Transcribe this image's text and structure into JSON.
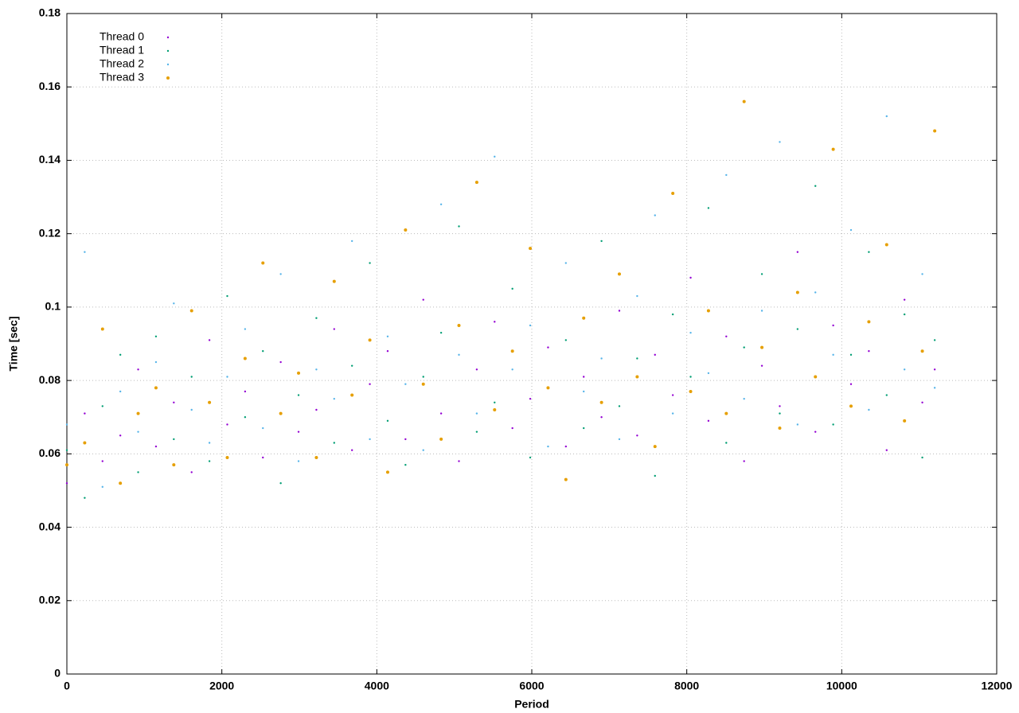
{
  "chart_data": {
    "type": "scatter",
    "x_label": "Period",
    "y_label": "Time [sec]",
    "xlim": [
      0,
      12000
    ],
    "xticks": [
      0,
      2000,
      4000,
      6000,
      8000,
      10000,
      12000
    ],
    "ylim": [
      0,
      0.18
    ],
    "yticks": [
      0,
      0.02,
      0.04,
      0.06,
      0.08,
      0.1,
      0.12,
      0.14,
      0.16,
      0.18
    ],
    "grid": true,
    "legend": "top-left",
    "x": [
      0,
      230,
      460,
      690,
      920,
      1150,
      1380,
      1610,
      1840,
      2070,
      2300,
      2530,
      2760,
      2990,
      3220,
      3450,
      3680,
      3910,
      4140,
      4370,
      4600,
      4830,
      5060,
      5290,
      5520,
      5750,
      5980,
      6210,
      6440,
      6670,
      6900,
      7130,
      7360,
      7590,
      7820,
      8050,
      8280,
      8510,
      8740,
      8970,
      9200,
      9430,
      9660,
      9890,
      10120,
      10350,
      10580,
      10810,
      11040,
      11200
    ],
    "series": [
      {
        "name": "Thread 0",
        "color": "#9400d3",
        "values": [
          0.052,
          0.071,
          0.058,
          0.065,
          0.083,
          0.062,
          0.074,
          0.055,
          0.091,
          0.068,
          0.077,
          0.059,
          0.085,
          0.066,
          0.072,
          0.094,
          0.061,
          0.079,
          0.088,
          0.064,
          0.102,
          0.071,
          0.058,
          0.083,
          0.096,
          0.067,
          0.075,
          0.089,
          0.062,
          0.081,
          0.07,
          0.099,
          0.065,
          0.087,
          0.076,
          0.108,
          0.069,
          0.092,
          0.058,
          0.084,
          0.073,
          0.115,
          0.066,
          0.095,
          0.079,
          0.088,
          0.061,
          0.102,
          0.074,
          0.083
        ]
      },
      {
        "name": "Thread 1",
        "color": "#009e73",
        "values": [
          0.061,
          0.048,
          0.073,
          0.087,
          0.055,
          0.092,
          0.064,
          0.081,
          0.058,
          0.103,
          0.07,
          0.088,
          0.052,
          0.076,
          0.097,
          0.063,
          0.084,
          0.112,
          0.069,
          0.057,
          0.081,
          0.093,
          0.122,
          0.066,
          0.074,
          0.105,
          0.059,
          0.078,
          0.091,
          0.067,
          0.118,
          0.073,
          0.086,
          0.054,
          0.098,
          0.081,
          0.127,
          0.063,
          0.089,
          0.109,
          0.071,
          0.094,
          0.133,
          0.068,
          0.087,
          0.115,
          0.076,
          0.098,
          0.059,
          0.091
        ]
      },
      {
        "name": "Thread 2",
        "color": "#56b4e9",
        "values": [
          0.068,
          0.115,
          0.051,
          0.077,
          0.066,
          0.085,
          0.101,
          0.072,
          0.063,
          0.081,
          0.094,
          0.067,
          0.109,
          0.058,
          0.083,
          0.075,
          0.118,
          0.064,
          0.092,
          0.079,
          0.061,
          0.128,
          0.087,
          0.071,
          0.141,
          0.083,
          0.095,
          0.062,
          0.112,
          0.077,
          0.086,
          0.064,
          0.103,
          0.125,
          0.071,
          0.093,
          0.082,
          0.136,
          0.075,
          0.099,
          0.145,
          0.068,
          0.104,
          0.087,
          0.121,
          0.072,
          0.152,
          0.083,
          0.109,
          0.078
        ]
      },
      {
        "name": "Thread 3",
        "color": "#e69f00",
        "values": [
          0.057,
          0.063,
          0.094,
          0.052,
          0.071,
          0.078,
          0.057,
          0.099,
          0.074,
          0.059,
          0.086,
          0.112,
          0.071,
          0.082,
          0.059,
          0.107,
          0.076,
          0.091,
          0.055,
          0.121,
          0.079,
          0.064,
          0.095,
          0.134,
          0.072,
          0.088,
          0.116,
          0.078,
          0.053,
          0.097,
          0.074,
          0.109,
          0.081,
          0.062,
          0.131,
          0.077,
          0.099,
          0.071,
          0.156,
          0.089,
          0.067,
          0.104,
          0.081,
          0.143,
          0.073,
          0.096,
          0.117,
          0.069,
          0.088,
          0.148
        ]
      }
    ]
  }
}
